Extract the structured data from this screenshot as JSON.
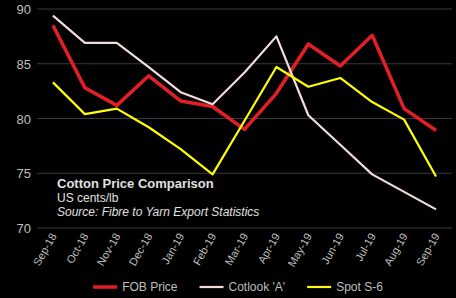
{
  "chart_data": {
    "type": "line",
    "title": "Cotton Price Comparison",
    "subtitle": "US cents/lb",
    "annotations": [
      "Source: Fibre to Yarn Export Statistics"
    ],
    "categories": [
      "Sep-18",
      "Oct-18",
      "Nov-18",
      "Dec-18",
      "Jan-19",
      "Feb-19",
      "Mar-19",
      "Apr-19",
      "May-19",
      "Jun-19",
      "Jul-19",
      "Aug-19",
      "Sep-19"
    ],
    "series": [
      {
        "name": "FOB Price",
        "color": "#e41e26",
        "values": [
          88.5,
          82.8,
          81.2,
          83.9,
          81.6,
          81.1,
          79.0,
          82.3,
          86.8,
          84.8,
          87.6,
          80.9,
          78.9
        ]
      },
      {
        "name": "Cotlook 'A'",
        "color": "#f2dcdb",
        "values": [
          89.4,
          86.9,
          86.9,
          84.7,
          82.4,
          81.3,
          84.2,
          87.5,
          80.3,
          77.6,
          74.9,
          73.3,
          71.7
        ]
      },
      {
        "name": "Spot S-6",
        "color": "#ffff00",
        "values": [
          83.3,
          80.4,
          80.9,
          79.2,
          77.2,
          74.9,
          79.8,
          84.7,
          82.9,
          83.7,
          81.5,
          79.9,
          74.7
        ]
      }
    ],
    "ylim": [
      70,
      90
    ],
    "yticks": [
      70,
      75,
      80,
      85,
      90
    ],
    "grid": true,
    "legend": "bottom"
  }
}
